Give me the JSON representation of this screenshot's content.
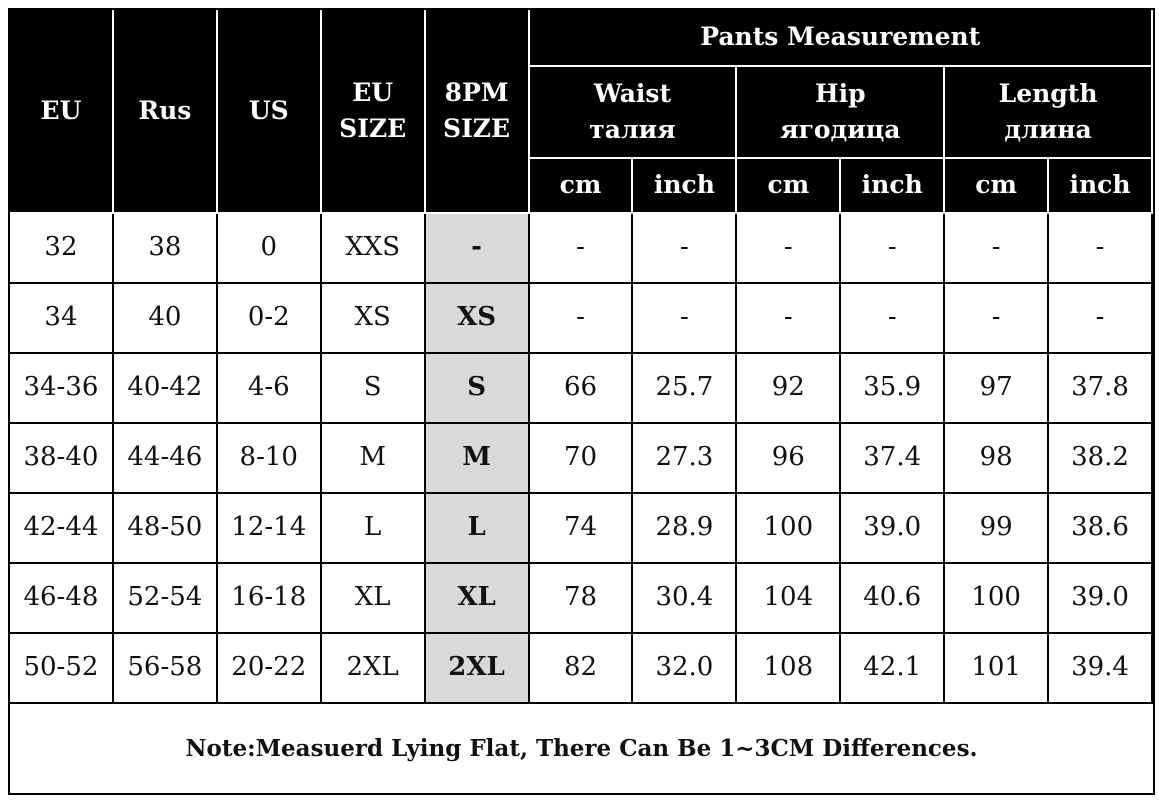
{
  "table": {
    "header": {
      "eu": "EU",
      "rus": "Rus",
      "us": "US",
      "eu_size": [
        "EU",
        "SIZE"
      ],
      "pm_size": [
        "8PM",
        "SIZE"
      ],
      "group": "Pants Measurement",
      "waist": [
        "Waist",
        "талия"
      ],
      "hip": [
        "Hip",
        "ягодица"
      ],
      "length": [
        "Length",
        "длина"
      ],
      "units": [
        "cm",
        "inch",
        "cm",
        "inch",
        "cm",
        "inch"
      ]
    },
    "rows": [
      [
        "32",
        "38",
        "0",
        "XXS",
        "-",
        "-",
        "-",
        "-",
        "-",
        "-",
        "-"
      ],
      [
        "34",
        "40",
        "0-2",
        "XS",
        "XS",
        "-",
        "-",
        "-",
        "-",
        "-",
        "-"
      ],
      [
        "34-36",
        "40-42",
        "4-6",
        "S",
        "S",
        "66",
        "25.7",
        "92",
        "35.9",
        "97",
        "37.8"
      ],
      [
        "38-40",
        "44-46",
        "8-10",
        "M",
        "M",
        "70",
        "27.3",
        "96",
        "37.4",
        "98",
        "38.2"
      ],
      [
        "42-44",
        "48-50",
        "12-14",
        "L",
        "L",
        "74",
        "28.9",
        "100",
        "39.0",
        "99",
        "38.6"
      ],
      [
        "46-48",
        "52-54",
        "16-18",
        "XL",
        "XL",
        "78",
        "30.4",
        "104",
        "40.6",
        "100",
        "39.0"
      ],
      [
        "50-52",
        "56-58",
        "20-22",
        "2XL",
        "2XL",
        "82",
        "32.0",
        "108",
        "42.1",
        "101",
        "39.4"
      ]
    ]
  },
  "note": "Note:Measuerd Lying Flat, There Can Be 1~3CM Differences."
}
